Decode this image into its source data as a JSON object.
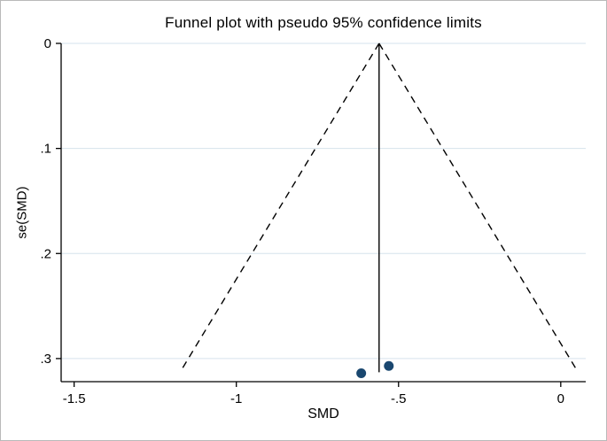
{
  "chart_data": {
    "type": "scatter",
    "title": "Funnel plot with pseudo 95% confidence limits",
    "xlabel": "SMD",
    "ylabel": "se(SMD)",
    "xlim": [
      -1.54,
      0.077
    ],
    "ylim": [
      0,
      0.322
    ],
    "y_axis_inverted": true,
    "grid": "horizontal",
    "legend": "none",
    "x_ticks": [
      {
        "value": -1.5,
        "label": "-1.5"
      },
      {
        "value": -1.0,
        "label": "-1"
      },
      {
        "value": -0.5,
        "label": "-.5"
      },
      {
        "value": 0.0,
        "label": "0"
      }
    ],
    "y_ticks": [
      {
        "value": 0.0,
        "label": "0"
      },
      {
        "value": 0.1,
        "label": ".1"
      },
      {
        "value": 0.2,
        "label": ".2"
      },
      {
        "value": 0.3,
        "label": ".3"
      }
    ],
    "pooled_effect_line": {
      "x": -0.56,
      "se_from": 0.0,
      "se_to": 0.313
    },
    "pseudo_ci_funnel": {
      "apex_x": -0.56,
      "apex_se": 0.0,
      "max_se": 0.313,
      "z": 1.96
    },
    "points": [
      {
        "smd": -0.615,
        "se": 0.314
      },
      {
        "smd": -0.53,
        "se": 0.307
      }
    ],
    "colors": {
      "point_fill": "#1a476f",
      "line": "#000000",
      "gridline": "#d6e3ec",
      "background": "#ffffff",
      "border": "#b9b9b9"
    }
  }
}
